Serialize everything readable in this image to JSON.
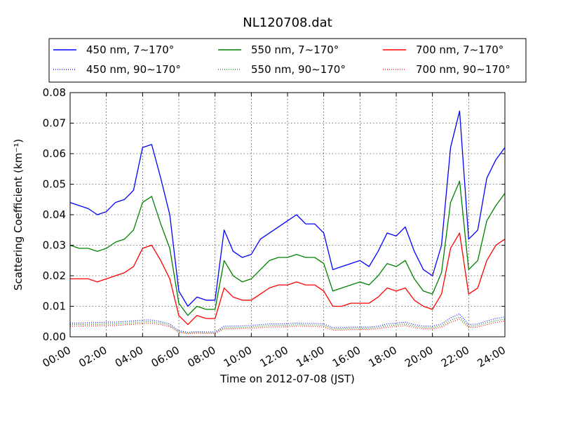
{
  "chart_data": {
    "type": "line",
    "title": "NL120708.dat",
    "xlabel": "Time on 2012-07-08 (JST)",
    "ylabel": "Scattering Coefficient (km⁻¹)",
    "x_unit": "hours",
    "xlim": [
      0,
      24
    ],
    "ylim": [
      0,
      0.08
    ],
    "xticks": [
      0,
      2,
      4,
      6,
      8,
      10,
      12,
      14,
      16,
      18,
      20,
      22,
      24
    ],
    "xtick_labels": [
      "00:00",
      "02:00",
      "04:00",
      "06:00",
      "08:00",
      "10:00",
      "12:00",
      "14:00",
      "16:00",
      "18:00",
      "20:00",
      "22:00",
      "24:00"
    ],
    "yticks": [
      0,
      0.01,
      0.02,
      0.03,
      0.04,
      0.05,
      0.06,
      0.07,
      0.08
    ],
    "ytick_labels": [
      "0.00",
      "0.01",
      "0.02",
      "0.03",
      "0.04",
      "0.05",
      "0.06",
      "0.07",
      "0.08"
    ],
    "grid": true,
    "legend_placement": "top, outside plot, 3 columns",
    "x": [
      0,
      0.5,
      1,
      1.5,
      2,
      2.5,
      3,
      3.5,
      4,
      4.5,
      5,
      5.5,
      6,
      6.5,
      7,
      7.5,
      8,
      8.5,
      9,
      9.5,
      10,
      10.5,
      11,
      11.5,
      12,
      12.5,
      13,
      13.5,
      14,
      14.5,
      15,
      15.5,
      16,
      16.5,
      17,
      17.5,
      18,
      18.5,
      19,
      19.5,
      20,
      20.5,
      21,
      21.5,
      22,
      22.5,
      23,
      23.5,
      24
    ],
    "series": [
      {
        "name": "450 nm, 7∼170°",
        "color": "#0000ff",
        "style": "solid",
        "values": [
          0.044,
          0.043,
          0.042,
          0.04,
          0.041,
          0.044,
          0.045,
          0.048,
          0.062,
          0.063,
          0.052,
          0.04,
          0.015,
          0.01,
          0.013,
          0.012,
          0.012,
          0.035,
          0.028,
          0.026,
          0.027,
          0.032,
          0.034,
          0.036,
          0.038,
          0.04,
          0.037,
          0.037,
          0.034,
          0.022,
          0.023,
          0.024,
          0.025,
          0.023,
          0.028,
          0.034,
          0.033,
          0.036,
          0.028,
          0.022,
          0.02,
          0.03,
          0.062,
          0.074,
          0.032,
          0.035,
          0.052,
          0.058,
          0.062
        ]
      },
      {
        "name": "550 nm, 7∼170°",
        "color": "#008000",
        "style": "solid",
        "values": [
          0.03,
          0.029,
          0.029,
          0.028,
          0.029,
          0.031,
          0.032,
          0.035,
          0.044,
          0.046,
          0.037,
          0.029,
          0.011,
          0.007,
          0.01,
          0.009,
          0.009,
          0.025,
          0.02,
          0.018,
          0.019,
          0.022,
          0.025,
          0.026,
          0.026,
          0.027,
          0.026,
          0.026,
          0.024,
          0.015,
          0.016,
          0.017,
          0.018,
          0.017,
          0.02,
          0.024,
          0.023,
          0.025,
          0.019,
          0.015,
          0.014,
          0.021,
          0.044,
          0.051,
          0.022,
          0.025,
          0.038,
          0.043,
          0.047
        ]
      },
      {
        "name": "700 nm, 7∼170°",
        "color": "#ff0000",
        "style": "solid",
        "values": [
          0.019,
          0.019,
          0.019,
          0.018,
          0.019,
          0.02,
          0.021,
          0.023,
          0.029,
          0.03,
          0.025,
          0.019,
          0.007,
          0.004,
          0.007,
          0.006,
          0.006,
          0.016,
          0.013,
          0.012,
          0.012,
          0.014,
          0.016,
          0.017,
          0.017,
          0.018,
          0.017,
          0.017,
          0.015,
          0.01,
          0.01,
          0.011,
          0.011,
          0.011,
          0.013,
          0.016,
          0.015,
          0.016,
          0.012,
          0.01,
          0.009,
          0.014,
          0.029,
          0.034,
          0.014,
          0.016,
          0.025,
          0.03,
          0.032
        ]
      },
      {
        "name": "450 nm, 90∼170°",
        "color": "#0000ff",
        "style": "dotted",
        "values": [
          0.0045,
          0.0045,
          0.0046,
          0.0047,
          0.0048,
          0.0048,
          0.005,
          0.0052,
          0.0055,
          0.0055,
          0.005,
          0.0042,
          0.002,
          0.0015,
          0.0017,
          0.0016,
          0.0016,
          0.0035,
          0.0035,
          0.0036,
          0.0037,
          0.004,
          0.0042,
          0.0042,
          0.0043,
          0.0045,
          0.0044,
          0.0044,
          0.0042,
          0.003,
          0.003,
          0.0032,
          0.0032,
          0.0032,
          0.0035,
          0.0042,
          0.0045,
          0.0048,
          0.004,
          0.0035,
          0.0035,
          0.0042,
          0.0062,
          0.0075,
          0.004,
          0.0042,
          0.0052,
          0.006,
          0.0065
        ]
      },
      {
        "name": "550 nm, 90∼170°",
        "color": "#008000",
        "style": "dotted",
        "values": [
          0.004,
          0.004,
          0.0041,
          0.0041,
          0.0042,
          0.0042,
          0.0044,
          0.0046,
          0.0049,
          0.0049,
          0.0045,
          0.0037,
          0.0017,
          0.0012,
          0.0014,
          0.0013,
          0.0013,
          0.003,
          0.003,
          0.0031,
          0.0032,
          0.0035,
          0.0037,
          0.0037,
          0.0038,
          0.004,
          0.0039,
          0.0039,
          0.0037,
          0.0026,
          0.0026,
          0.0028,
          0.0028,
          0.0028,
          0.003,
          0.0036,
          0.0039,
          0.0042,
          0.0035,
          0.003,
          0.003,
          0.0036,
          0.0054,
          0.0065,
          0.0035,
          0.0037,
          0.0046,
          0.0053,
          0.0058
        ]
      },
      {
        "name": "700 nm, 90∼170°",
        "color": "#ff0000",
        "style": "dotted",
        "values": [
          0.0035,
          0.0035,
          0.0036,
          0.0036,
          0.0037,
          0.0037,
          0.0039,
          0.0041,
          0.0044,
          0.0044,
          0.004,
          0.0033,
          0.0014,
          0.001,
          0.0012,
          0.0011,
          0.0011,
          0.0026,
          0.0026,
          0.0027,
          0.0028,
          0.003,
          0.0032,
          0.0032,
          0.0033,
          0.0035,
          0.0034,
          0.0034,
          0.0032,
          0.0022,
          0.0022,
          0.0024,
          0.0024,
          0.0024,
          0.0026,
          0.0031,
          0.0034,
          0.0037,
          0.003,
          0.0026,
          0.0026,
          0.0031,
          0.0048,
          0.0058,
          0.003,
          0.0032,
          0.004,
          0.0047,
          0.0052
        ]
      }
    ]
  }
}
